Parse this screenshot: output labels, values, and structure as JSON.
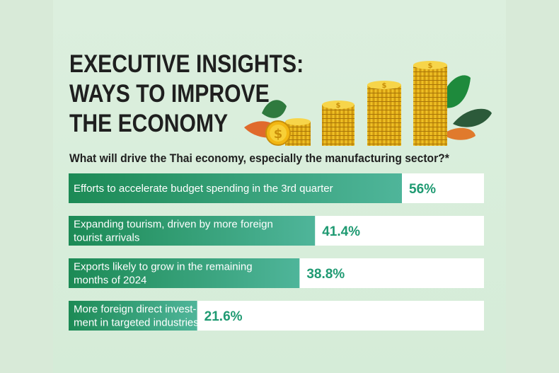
{
  "header": {
    "title_lines": [
      "EXECUTIVE INSIGHTS:",
      "WAYS TO IMPROVE",
      "THE ECONOMY"
    ],
    "subtitle": "What will drive the Thai economy, especially the manufacturing sector?*"
  },
  "colors": {
    "bar_dark": "#1c8a55",
    "bar_light": "#4fb59a",
    "value_text": "#1f9a72",
    "track": "#ffffff"
  },
  "chart_data": {
    "type": "bar",
    "orientation": "horizontal",
    "title": "What will drive the Thai economy, especially the manufacturing sector?*",
    "categories": [
      [
        "Efforts to accelerate budget spending in the 3rd quarter"
      ],
      [
        "Expanding tourism, driven by more foreign",
        "tourist arrivals"
      ],
      [
        "Exports likely to grow in the remaining",
        "months of 2024"
      ],
      [
        "More foreign direct invest-",
        "ment in targeted industries"
      ]
    ],
    "values": [
      56,
      41.4,
      38.8,
      21.6
    ],
    "value_labels": [
      "56%",
      "41.4%",
      "38.8%",
      "21.6%"
    ],
    "unit": "%",
    "xlim": [
      0,
      70
    ]
  }
}
